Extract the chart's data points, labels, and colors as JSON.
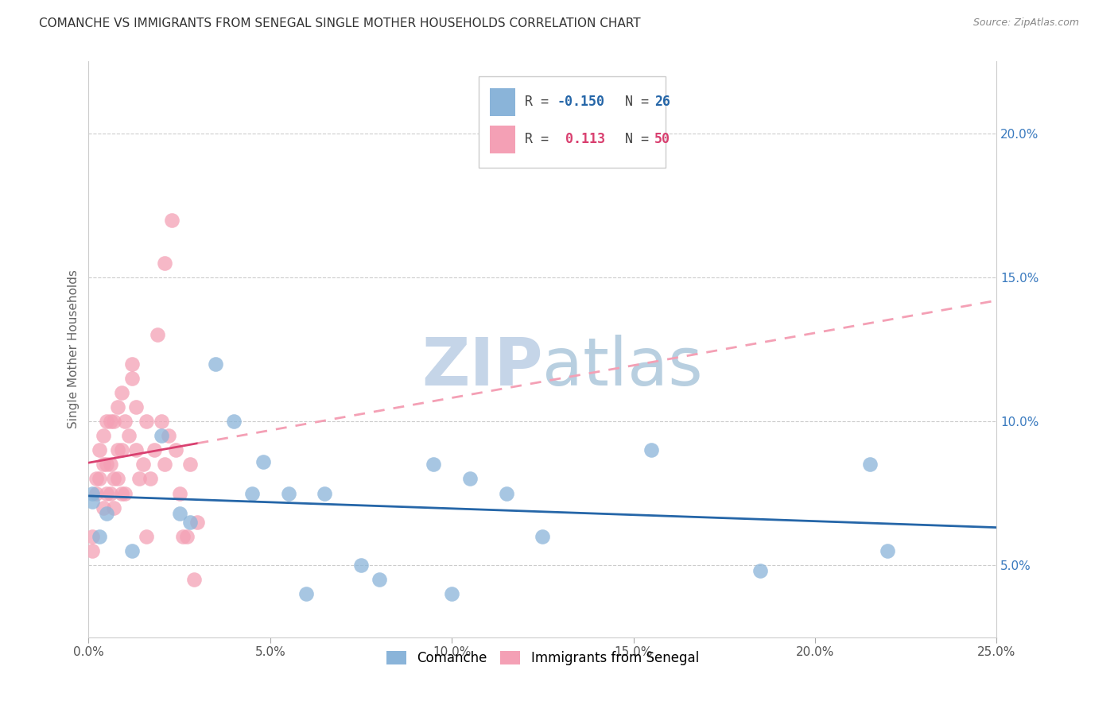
{
  "title": "COMANCHE VS IMMIGRANTS FROM SENEGAL SINGLE MOTHER HOUSEHOLDS CORRELATION CHART",
  "source": "Source: ZipAtlas.com",
  "ylabel": "Single Mother Households",
  "xlabel_ticks": [
    "0.0%",
    "5.0%",
    "10.0%",
    "15.0%",
    "20.0%",
    "25.0%"
  ],
  "xlabel_vals": [
    0.0,
    0.05,
    0.1,
    0.15,
    0.2,
    0.25
  ],
  "ylabel_ticks": [
    "5.0%",
    "10.0%",
    "15.0%",
    "20.0%"
  ],
  "ylabel_vals": [
    0.05,
    0.1,
    0.15,
    0.2
  ],
  "xlim": [
    0.0,
    0.25
  ],
  "ylim": [
    0.025,
    0.225
  ],
  "watermark": "ZIPatlas",
  "watermark_color": "#ccd9ee",
  "comanche_color": "#8ab4d9",
  "senegal_color": "#f4a0b5",
  "comanche_line_color": "#2566a8",
  "senegal_line_color": "#d94070",
  "senegal_dash_color": "#f4a0b5",
  "comanche_x": [
    0.001,
    0.001,
    0.003,
    0.005,
    0.012,
    0.02,
    0.025,
    0.028,
    0.035,
    0.04,
    0.045,
    0.048,
    0.055,
    0.06,
    0.065,
    0.075,
    0.08,
    0.095,
    0.1,
    0.105,
    0.115,
    0.125,
    0.155,
    0.185,
    0.215,
    0.22
  ],
  "comanche_y": [
    0.075,
    0.072,
    0.06,
    0.068,
    0.055,
    0.095,
    0.068,
    0.065,
    0.12,
    0.1,
    0.075,
    0.086,
    0.075,
    0.04,
    0.075,
    0.05,
    0.045,
    0.085,
    0.04,
    0.08,
    0.075,
    0.06,
    0.09,
    0.048,
    0.085,
    0.055
  ],
  "senegal_x": [
    0.001,
    0.001,
    0.002,
    0.002,
    0.003,
    0.003,
    0.004,
    0.004,
    0.004,
    0.005,
    0.005,
    0.005,
    0.006,
    0.006,
    0.006,
    0.007,
    0.007,
    0.007,
    0.008,
    0.008,
    0.008,
    0.009,
    0.009,
    0.009,
    0.01,
    0.01,
    0.011,
    0.012,
    0.012,
    0.013,
    0.013,
    0.014,
    0.015,
    0.016,
    0.016,
    0.017,
    0.018,
    0.019,
    0.02,
    0.021,
    0.021,
    0.022,
    0.023,
    0.024,
    0.025,
    0.026,
    0.027,
    0.028,
    0.029,
    0.03
  ],
  "senegal_y": [
    0.06,
    0.055,
    0.075,
    0.08,
    0.08,
    0.09,
    0.07,
    0.085,
    0.095,
    0.075,
    0.085,
    0.1,
    0.075,
    0.085,
    0.1,
    0.07,
    0.08,
    0.1,
    0.08,
    0.09,
    0.105,
    0.075,
    0.09,
    0.11,
    0.075,
    0.1,
    0.095,
    0.115,
    0.12,
    0.09,
    0.105,
    0.08,
    0.085,
    0.06,
    0.1,
    0.08,
    0.09,
    0.13,
    0.1,
    0.155,
    0.085,
    0.095,
    0.17,
    0.09,
    0.075,
    0.06,
    0.06,
    0.085,
    0.045,
    0.065
  ]
}
